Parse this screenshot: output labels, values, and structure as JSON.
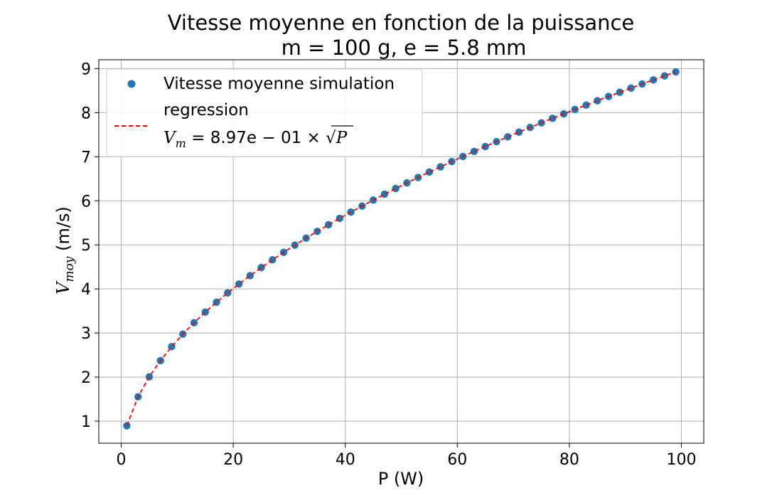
{
  "chart_data": {
    "type": "scatter",
    "title": "Vitesse moyenne en fonction de la puissance",
    "subtitle": "m = 100 g, e = 5.8 mm",
    "xlabel": "P (W)",
    "ylabel": {
      "main": "V",
      "sub": "moy",
      "unit": " (m/s)"
    },
    "xlim": [
      -4,
      104
    ],
    "ylim": [
      0.5,
      9.2
    ],
    "xticks": [
      0,
      20,
      40,
      60,
      80,
      100
    ],
    "yticks": [
      1,
      2,
      3,
      4,
      5,
      6,
      7,
      8,
      9
    ],
    "grid": true,
    "legend_position": "top-left",
    "coefficient": 0.897,
    "series": [
      {
        "name": "Vitesse moyenne simulation",
        "kind": "scatter",
        "color": "#1f77b4",
        "x": [
          1,
          3,
          5,
          7,
          9,
          11,
          13,
          15,
          17,
          19,
          21,
          23,
          25,
          27,
          29,
          31,
          33,
          35,
          37,
          39,
          41,
          43,
          45,
          47,
          49,
          51,
          53,
          55,
          57,
          59,
          61,
          63,
          65,
          67,
          69,
          71,
          73,
          75,
          77,
          79,
          81,
          83,
          85,
          87,
          89,
          91,
          93,
          95,
          97,
          99
        ],
        "y": [
          0.897,
          1.554,
          2.006,
          2.373,
          2.691,
          2.975,
          3.234,
          3.474,
          3.698,
          3.91,
          4.111,
          4.302,
          4.485,
          4.661,
          4.83,
          4.994,
          5.153,
          5.307,
          5.456,
          5.602,
          5.744,
          5.882,
          6.017,
          6.15,
          6.279,
          6.406,
          6.53,
          6.652,
          6.772,
          6.89,
          7.006,
          7.12,
          7.232,
          7.342,
          7.451,
          7.558,
          7.664,
          7.768,
          7.871,
          7.973,
          8.073,
          8.172,
          8.27,
          8.367,
          8.462,
          8.557,
          8.65,
          8.743,
          8.834,
          8.925
        ]
      },
      {
        "name": "regression",
        "kind": "line",
        "style": "dashed",
        "color": "#ff0000",
        "x": [
          1,
          3,
          5,
          7,
          9,
          11,
          13,
          15,
          17,
          19,
          21,
          23,
          25,
          27,
          29,
          31,
          33,
          35,
          37,
          39,
          41,
          43,
          45,
          47,
          49,
          51,
          53,
          55,
          57,
          59,
          61,
          63,
          65,
          67,
          69,
          71,
          73,
          75,
          77,
          79,
          81,
          83,
          85,
          87,
          89,
          91,
          93,
          95,
          97,
          99
        ],
        "y": [
          0.897,
          1.554,
          2.006,
          2.373,
          2.691,
          2.975,
          3.234,
          3.474,
          3.698,
          3.91,
          4.111,
          4.302,
          4.485,
          4.661,
          4.83,
          4.994,
          5.153,
          5.307,
          5.456,
          5.602,
          5.744,
          5.882,
          6.017,
          6.15,
          6.279,
          6.406,
          6.53,
          6.652,
          6.772,
          6.89,
          7.006,
          7.12,
          7.232,
          7.342,
          7.451,
          7.558,
          7.664,
          7.768,
          7.871,
          7.973,
          8.073,
          8.172,
          8.27,
          8.367,
          8.462,
          8.557,
          8.65,
          8.743,
          8.834,
          8.925
        ]
      }
    ],
    "legend": {
      "scatter_label": "Vitesse moyenne simulation",
      "line_label": "regression",
      "formula": {
        "lhs": "V",
        "lhs_sub": "m",
        "mid": " = 8.97e − 01 × ",
        "var": "P"
      }
    }
  }
}
